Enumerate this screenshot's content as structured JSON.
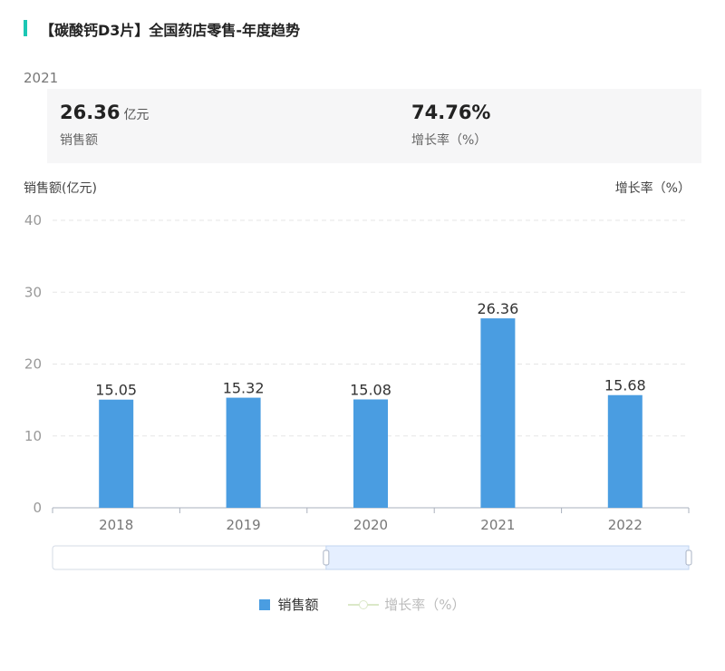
{
  "header": {
    "title": "【碳酸钙D3片】全国药店零售-年度趋势"
  },
  "summary": {
    "year": "2021",
    "sales_value": "26.36",
    "sales_unit": "亿元",
    "sales_label": "销售额",
    "growth_value": "74.76%",
    "growth_label": "增长率（%）"
  },
  "chart_data": {
    "type": "bar",
    "categories": [
      "2018",
      "2019",
      "2020",
      "2021",
      "2022"
    ],
    "series": [
      {
        "name": "销售额",
        "values": [
          15.05,
          15.32,
          15.08,
          26.36,
          15.68
        ]
      }
    ],
    "data_labels": [
      "15.05",
      "15.32",
      "15.08",
      "26.36",
      "15.68"
    ],
    "ylabel": "销售额(亿元)",
    "y2label": "增长率（%）",
    "ylim": [
      0,
      40
    ],
    "yticks": [
      0,
      10,
      20,
      30,
      40
    ],
    "grid": true,
    "bar_color": "#4a9de1",
    "legend_position": "bottom",
    "slider_range": [
      0.43,
      1.0
    ]
  },
  "legend": {
    "bar_label": "销售额",
    "line_label": "增长率（%）"
  }
}
